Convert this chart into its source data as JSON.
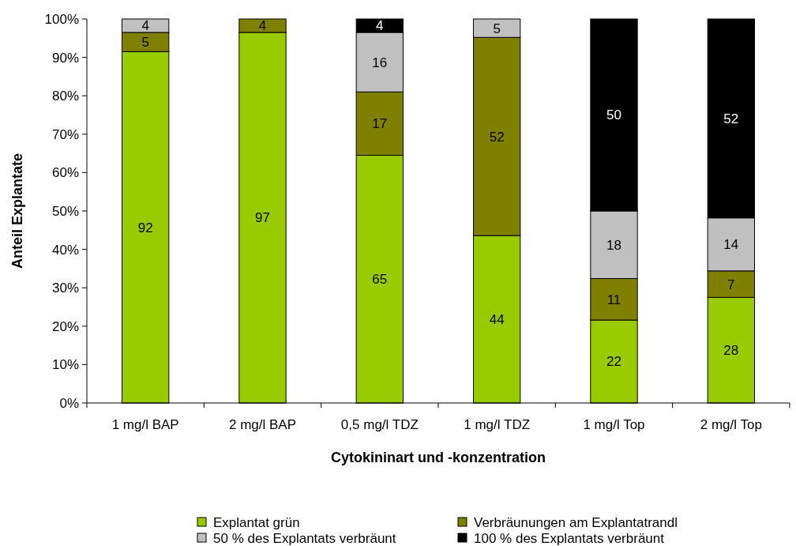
{
  "chart_data": {
    "type": "bar",
    "stacked": true,
    "xlabel": "Cytokininart und -konzentration",
    "ylabel": "Anteil Explantate",
    "categories": [
      "1 mg/l BAP",
      "2 mg/l BAP",
      "0,5 mg/l TDZ",
      "1 mg/l TDZ",
      "1 mg/l Top",
      "2 mg/l Top"
    ],
    "series": [
      {
        "name": "Explantat grün",
        "color": "#99cc00",
        "values": [
          91.5,
          96.5,
          64.5,
          43.6,
          21.6,
          27.5
        ],
        "value_labels": [
          "92",
          "97",
          "65",
          "44",
          "22",
          "28"
        ]
      },
      {
        "name": "Verbräunungen am Explantatrandl",
        "color": "#808000",
        "values": [
          5,
          3.5,
          16.5,
          51.6,
          10.8,
          6.9
        ],
        "value_labels": [
          "5",
          "4",
          "17",
          "52",
          "11",
          "7"
        ]
      },
      {
        "name": "50 % des Explantats verbräunt",
        "color": "#c0c0c0",
        "values": [
          3.5,
          null,
          15.5,
          4.8,
          17.6,
          13.8
        ],
        "value_labels": [
          "4",
          null,
          "16",
          "5",
          "18",
          "14"
        ]
      },
      {
        "name": "100 % des Explantats verbräunt",
        "color": "#000000",
        "values": [
          null,
          null,
          3.5,
          null,
          50,
          51.8
        ],
        "value_labels": [
          null,
          null,
          "4",
          null,
          "50",
          "52"
        ]
      }
    ],
    "ylim": [
      0,
      100
    ],
    "yticks": [
      {
        "value": 0,
        "label": "0%"
      },
      {
        "value": 10,
        "label": "10%"
      },
      {
        "value": 20,
        "label": "20%"
      },
      {
        "value": 30,
        "label": "30%"
      },
      {
        "value": 40,
        "label": "40%"
      },
      {
        "value": 50,
        "label": "50%"
      },
      {
        "value": 60,
        "label": "60%"
      },
      {
        "value": 70,
        "label": "70%"
      },
      {
        "value": 80,
        "label": "80%"
      },
      {
        "value": 90,
        "label": "90%"
      },
      {
        "value": 100,
        "label": "100%"
      }
    ],
    "grid": false,
    "legend": "bottom"
  }
}
